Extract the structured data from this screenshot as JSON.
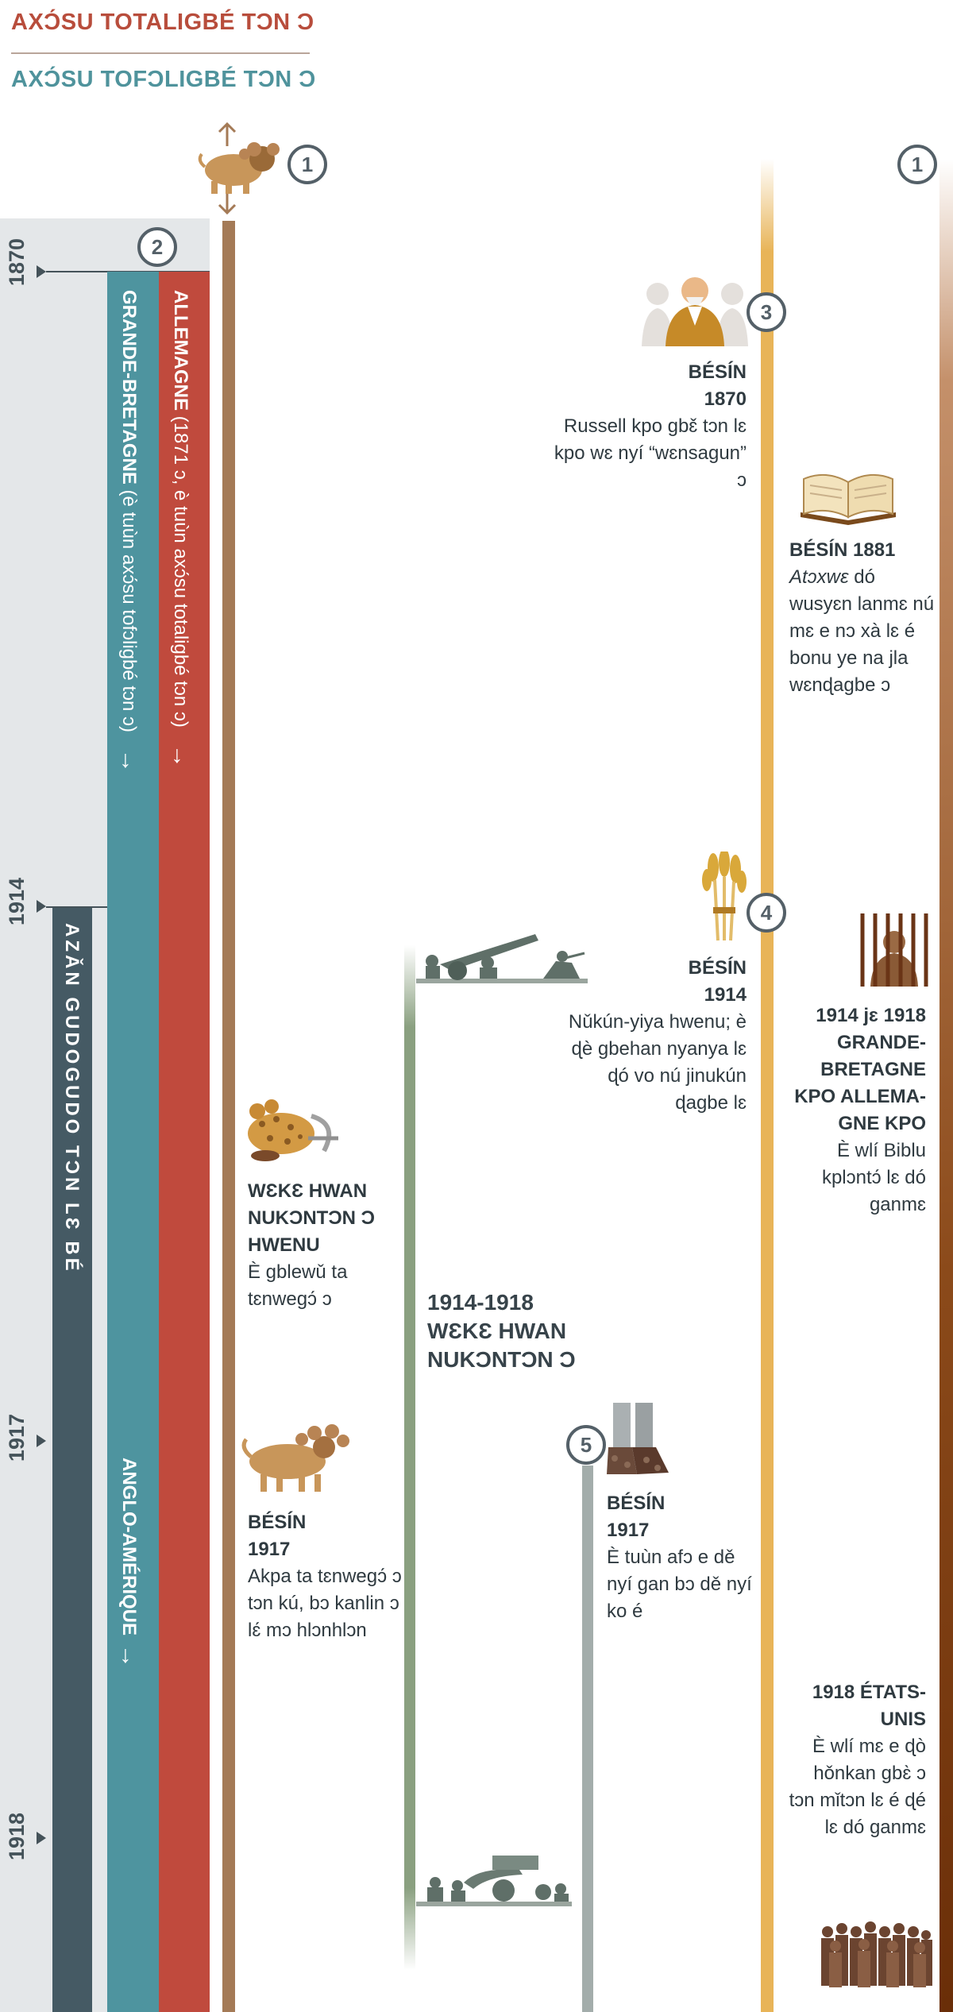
{
  "header": {
    "title_totalitarian": "AXƆ́SU TOTALIGBÉ TƆN Ɔ",
    "title_tofoligbe": "AXƆ́SU TOFƆLIGBÉ TƆN Ɔ"
  },
  "markers": {
    "m1_left": "1",
    "m1_right": "1",
    "m2": "2",
    "m3": "3",
    "m4": "4",
    "m5": "5"
  },
  "years": {
    "y1870": "1870",
    "y1914": "1914",
    "y1917": "1917",
    "y1918": "1918"
  },
  "bars": {
    "allemagne_title": "ALLEMAGNE",
    "allemagne_note": " (1871 ɔ, è tuùn axɔ́su totaligbé tɔn ɔ)",
    "allemagne_arrow": "→",
    "bretagne_title": "GRANDE-BRETAGNE",
    "bretagne_note": " (è tuùn axɔ́su tofɔligbé tɔn ɔ)",
    "bretagne_arrow": "→",
    "azan": "AZǍN GUDOGUDO TƆN LƐ BÉ",
    "anglo": "ANGLO-AMÉRIQUE",
    "anglo_arrow": "→"
  },
  "events": {
    "e1870_title1": "BÉSÍN",
    "e1870_title2": "1870",
    "e1870_text": "Russell kpo gbɛ̌ tɔn lɛ kpo wɛ nyí “wɛnsagun” ɔ",
    "e1881_title": "BÉSÍN 1881",
    "e1881_italic": "Atɔxwɛ",
    "e1881_text": " dó wusyɛn lanmɛ nú mɛ e nɔ xà lɛ é bonu ye na jla wɛnɖagbe ɔ",
    "e1914_title1": "BÉSÍN",
    "e1914_title2": "1914",
    "e1914_text": "Nǔkún-yiya hwenu; è ɖè gbe­han nyanya lɛ ɖó vo nú jinukún ɖagbe lɛ",
    "e1914_1918_title": "1914 jɛ 1918 GRANDE-BRETAGNE KPO ALLEMA­GNE KPO",
    "e1914_1918_text": "È wlí Biblu kplɔntɔ́ lɛ dó ganmɛ",
    "wwi_head_title": "WƐKƐ HWAN NUKƆNTƆN Ɔ HWENU",
    "wwi_head_text": "È gblewǔ ta tɛnwegɔ́ ɔ",
    "wwi_period": "1914-1918 WƐKƐ HWAN NUKƆNTƆN Ɔ",
    "e1917_title1": "BÉSÍN",
    "e1917_title2": "1917",
    "e1917_lion_text": "Akpa ta tɛnwegɔ́ ɔ tɔn kú, bɔ kanlin ɔ lɛ́ mɔ hlɔnhlɔn",
    "e1917_feet_title1": "BÉSÍN",
    "e1917_feet_title2": "1917",
    "e1917_feet_text": "È tuùn afɔ e dě nyí gan bɔ dě nyí ko é",
    "e1918_title": "1918 ÉTATS-UNIS",
    "e1918_text": "È wlí mɛ e ɖò hǒnkan gbɛ̀ ɔ tɔn mǐtɔn lɛ é ɖé lɛ dó ganmɛ"
  },
  "icons": [
    "lion-icon",
    "russell-icon",
    "bible-icon",
    "wheat-icon",
    "prison-icon",
    "wounded-lion-icon",
    "artillery-icon",
    "feet-icon",
    "prisoners-icon"
  ],
  "colors": {
    "red": "#c04a3d",
    "teal": "#4e949f",
    "slate": "#455a64",
    "gold": "#e8b458",
    "brown": "#8b4a1a"
  }
}
